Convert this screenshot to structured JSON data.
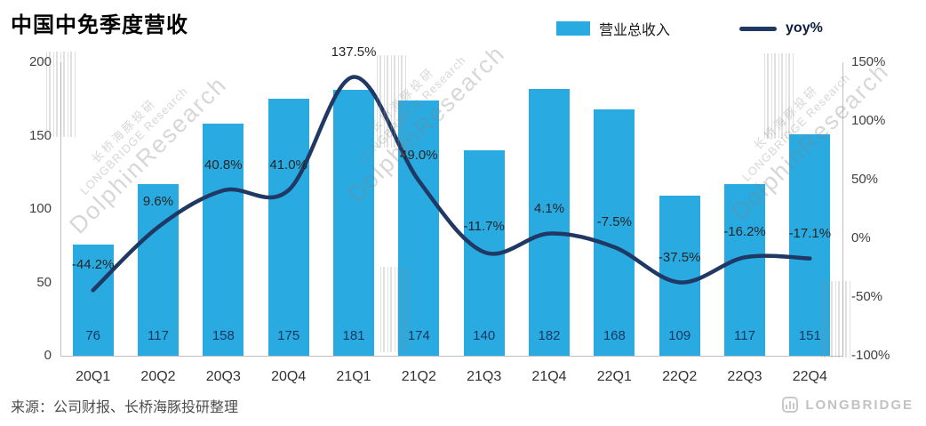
{
  "title": "中国中免季度营收",
  "legend": [
    {
      "label": "营业总收入",
      "type": "bar"
    },
    {
      "label": "yoy%",
      "type": "line"
    }
  ],
  "source": "来源：公司财报、长桥海豚投研整理",
  "logo": {
    "text": "LONGBRIDGE"
  },
  "watermarks": {
    "cn": "长桥海豚投研",
    "en": "LONGBRIDGE Research",
    "big": "DolphinResearch"
  },
  "chart_data": {
    "type": "combo",
    "title": "中国中免季度营收",
    "categories": [
      "20Q1",
      "20Q2",
      "20Q3",
      "20Q4",
      "21Q1",
      "21Q2",
      "21Q3",
      "21Q4",
      "22Q1",
      "22Q2",
      "22Q3",
      "22Q4"
    ],
    "series": [
      {
        "name": "营业总收入",
        "type": "bar",
        "axis": "left",
        "color": "#29ABE2",
        "values": [
          76,
          117,
          158,
          175,
          181,
          174,
          140,
          182,
          168,
          109,
          117,
          151
        ]
      },
      {
        "name": "yoy%",
        "type": "line",
        "axis": "right",
        "color": "#1F3864",
        "values": [
          -44.2,
          9.6,
          40.8,
          41.0,
          137.5,
          49.0,
          -11.7,
          4.1,
          -7.5,
          -37.5,
          -16.2,
          -17.1
        ],
        "labels": [
          "-44.2%",
          "9.6%",
          "40.8%",
          "41.0%",
          "137.5%",
          "49.0%",
          "-11.7%",
          "4.1%",
          "-7.5%",
          "-37.5%",
          "-16.2%",
          "-17.1%"
        ]
      }
    ],
    "left_axis": {
      "min": 0,
      "max": 200,
      "ticks": [
        0,
        50,
        100,
        150,
        200
      ]
    },
    "right_axis": {
      "min": -100,
      "max": 150,
      "tick_values": [
        -100,
        -50,
        0,
        50,
        100,
        150
      ],
      "tick_labels": [
        "-100%",
        "-50%",
        "0%",
        "50%",
        "100%",
        "150%"
      ]
    },
    "grid": "off",
    "legend_position": "top-right"
  }
}
